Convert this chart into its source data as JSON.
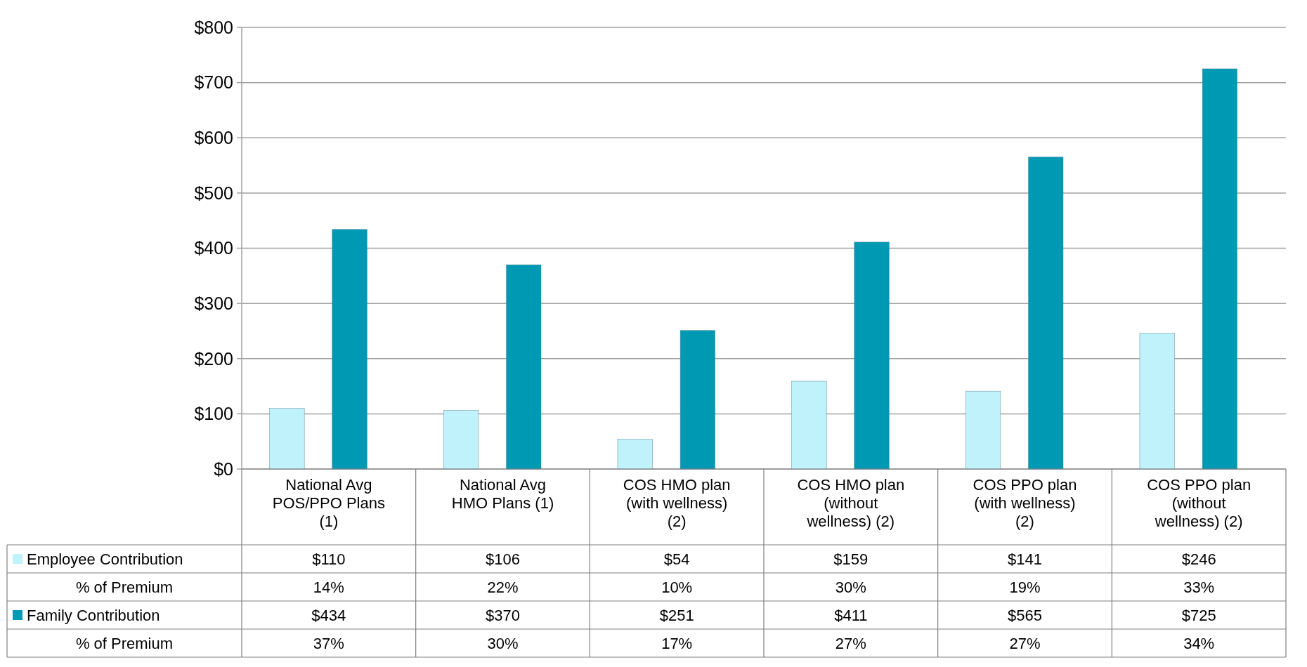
{
  "chart_data": {
    "type": "bar",
    "categories": [
      "National Avg POS/PPO Plans (1)",
      "National Avg HMO Plans (1)",
      "COS HMO plan (with wellness) (2)",
      "COS HMO plan (without wellness) (2)",
      "COS PPO plan (with wellness) (2)",
      "COS PPO plan (without wellness) (2)"
    ],
    "series": [
      {
        "name": "Employee Contribution",
        "color": "#bff2fa",
        "values": [
          110,
          106,
          54,
          159,
          141,
          246
        ],
        "value_labels": [
          "$110",
          "$106",
          "$54",
          "$159",
          "$141",
          "$246"
        ]
      },
      {
        "name": "Family Contribution",
        "color": "#0099b4",
        "values": [
          434,
          370,
          251,
          411,
          565,
          725
        ],
        "value_labels": [
          "$434",
          "$370",
          "$251",
          "$411",
          "$565",
          "$725"
        ]
      }
    ],
    "ylim": [
      0,
      800
    ],
    "yticks": [
      {
        "value": 0,
        "label": "$0"
      },
      {
        "value": 100,
        "label": "$100"
      },
      {
        "value": 200,
        "label": "$200"
      },
      {
        "value": 300,
        "label": "$300"
      },
      {
        "value": 400,
        "label": "$400"
      },
      {
        "value": 500,
        "label": "$500"
      },
      {
        "value": 600,
        "label": "$600"
      },
      {
        "value": 700,
        "label": "$700"
      },
      {
        "value": 800,
        "label": "$800"
      }
    ],
    "grid": "y",
    "legend": "bottom left",
    "annotations": [
      "% of Premium",
      "14%",
      "22%",
      "10%",
      "30%",
      "19%",
      "33%",
      "% of Premium",
      "37%",
      "30%",
      "17%",
      "27%",
      "27%",
      "34%"
    ]
  }
}
